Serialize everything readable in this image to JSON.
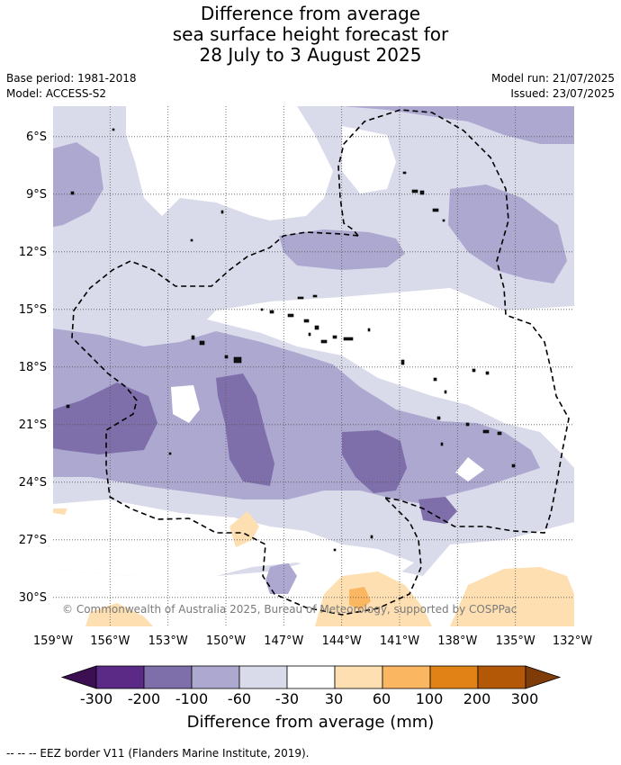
{
  "title": {
    "line1": "Difference from average",
    "line2": "sea surface height forecast for",
    "line3": "28 July to 3 August 2025"
  },
  "meta": {
    "base_period": "Base period: 1981-2018",
    "model": "Model: ACCESS-S2",
    "model_run": "Model run: 21/07/2025",
    "issued": "Issued: 23/07/2025"
  },
  "map": {
    "lon_range": [
      -159,
      -132
    ],
    "lat_range": [
      -31.5,
      -4
    ],
    "lat_ticks": [
      "6°S",
      "9°S",
      "12°S",
      "15°S",
      "18°S",
      "21°S",
      "24°S",
      "27°S",
      "30°S"
    ],
    "lon_ticks": [
      "159°W",
      "156°W",
      "153°W",
      "150°W",
      "147°W",
      "144°W",
      "141°W",
      "138°W",
      "135°W",
      "132°W"
    ],
    "gridlines": true,
    "copyright": "© Commonwealth of Australia 2025, Bureau of Meteorology, supported by COSPPac"
  },
  "colorbar": {
    "labels": [
      "-300",
      "-200",
      "-100",
      "-60",
      "-30",
      "30",
      "60",
      "100",
      "200",
      "300"
    ],
    "colors": [
      "#3b0f51",
      "#5b2a87",
      "#7e6fab",
      "#ada8d0",
      "#dadbea",
      "#ffffff",
      "#fddfb2",
      "#fbb661",
      "#e08216",
      "#b35807",
      "#7f3b08"
    ],
    "title": "Difference from average (mm)"
  },
  "footer": "-- -- -- EEZ border V11 (Flanders Marine Institute, 2019)."
}
